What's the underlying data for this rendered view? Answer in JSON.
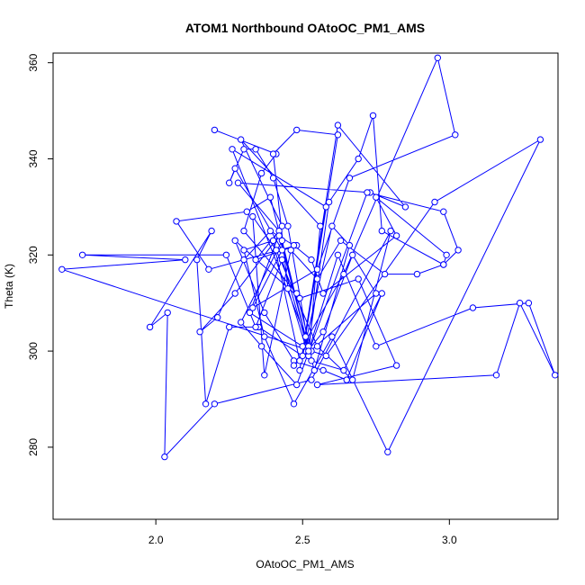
{
  "chart_data": {
    "type": "scatter",
    "title": "ATOM1 Northbound OAtoOC_PM1_AMS",
    "xlabel": "OAtoOC_PM1_AMS",
    "ylabel": "Theta (K)",
    "xlim": [
      1.65,
      3.37
    ],
    "ylim": [
      265,
      362
    ],
    "xticks": [
      "2.0",
      "2.5",
      "3.0"
    ],
    "yticks": [
      "280",
      "300",
      "320",
      "340",
      "360"
    ],
    "xtick_values": [
      2.0,
      2.5,
      3.0
    ],
    "ytick_values": [
      280,
      300,
      320,
      340,
      360
    ],
    "grid": false,
    "legend": "none",
    "connected": true,
    "series_color": "#0000ff",
    "x": [
      2.2,
      2.41,
      2.36,
      2.3,
      2.48,
      2.53,
      2.26,
      2.58,
      2.49,
      2.62,
      2.85,
      2.73,
      2.28,
      2.42,
      2.34,
      2.48,
      2.18,
      2.07,
      2.31,
      2.39,
      2.51,
      2.62,
      2.48,
      2.4,
      2.45,
      2.52,
      2.56,
      2.29,
      2.43,
      2.32,
      2.5,
      2.64,
      2.96,
      3.02,
      2.66,
      2.55,
      2.33,
      2.43,
      2.27,
      2.25,
      2.3,
      2.34,
      2.4,
      2.45,
      2.52,
      2.59,
      2.69,
      2.74,
      2.77,
      2.98,
      2.99,
      2.75,
      2.82,
      2.57,
      2.53,
      2.47,
      2.39,
      2.3,
      2.21,
      2.15,
      2.27,
      2.42,
      2.54,
      2.66,
      2.6,
      2.5,
      2.35,
      2.25,
      2.17,
      2.14,
      2.19,
      1.98,
      2.04,
      2.03,
      2.2,
      2.53,
      2.8,
      2.67,
      2.55,
      2.41,
      2.33,
      2.37,
      2.46,
      2.55,
      2.63,
      2.78,
      2.89,
      2.98,
      3.03,
      2.98,
      2.72,
      2.48,
      2.36,
      2.29,
      2.43,
      2.51,
      2.52,
      2.62,
      2.75,
      3.08,
      3.27,
      3.36,
      3.24,
      3.16,
      2.55,
      2.82,
      2.69,
      2.49,
      2.27,
      2.37,
      2.47,
      2.57,
      2.65,
      2.77,
      2.64,
      2.53,
      2.43,
      2.34,
      2.24,
      1.75,
      2.1,
      1.68,
      2.58,
      2.95,
      3.31,
      2.79,
      2.6,
      2.47,
      2.37,
      2.3,
      2.4,
      2.49,
      2.57,
      2.67,
      2.75,
      2.47
    ],
    "y": [
      346,
      341,
      337,
      325,
      312,
      300,
      342,
      330,
      296,
      347,
      330,
      333,
      335,
      325,
      319,
      322,
      317,
      327,
      329,
      332,
      303,
      345,
      346,
      341,
      313,
      299,
      326,
      344,
      326,
      308,
      301,
      316,
      361,
      345,
      336,
      317,
      309,
      321,
      338,
      335,
      342,
      342,
      336,
      326,
      301,
      331,
      340,
      349,
      325,
      318,
      320,
      332,
      324,
      312,
      319,
      322,
      325,
      319,
      307,
      304,
      312,
      324,
      296,
      322,
      326,
      299,
      305,
      305,
      289,
      319,
      325,
      305,
      308,
      278,
      289,
      294,
      325,
      294,
      301,
      321,
      328,
      295,
      321,
      315,
      323,
      316,
      316,
      318,
      321,
      329,
      333,
      293,
      301,
      306,
      323,
      303,
      300,
      320,
      301,
      309,
      310,
      295,
      310,
      295,
      293,
      297,
      315,
      311,
      323,
      308,
      298,
      296,
      294,
      312,
      296,
      298,
      319,
      305,
      320,
      320,
      319,
      317,
      299,
      331,
      344,
      279,
      303,
      289,
      303,
      321,
      323,
      298,
      304,
      320,
      312,
      297
    ]
  }
}
